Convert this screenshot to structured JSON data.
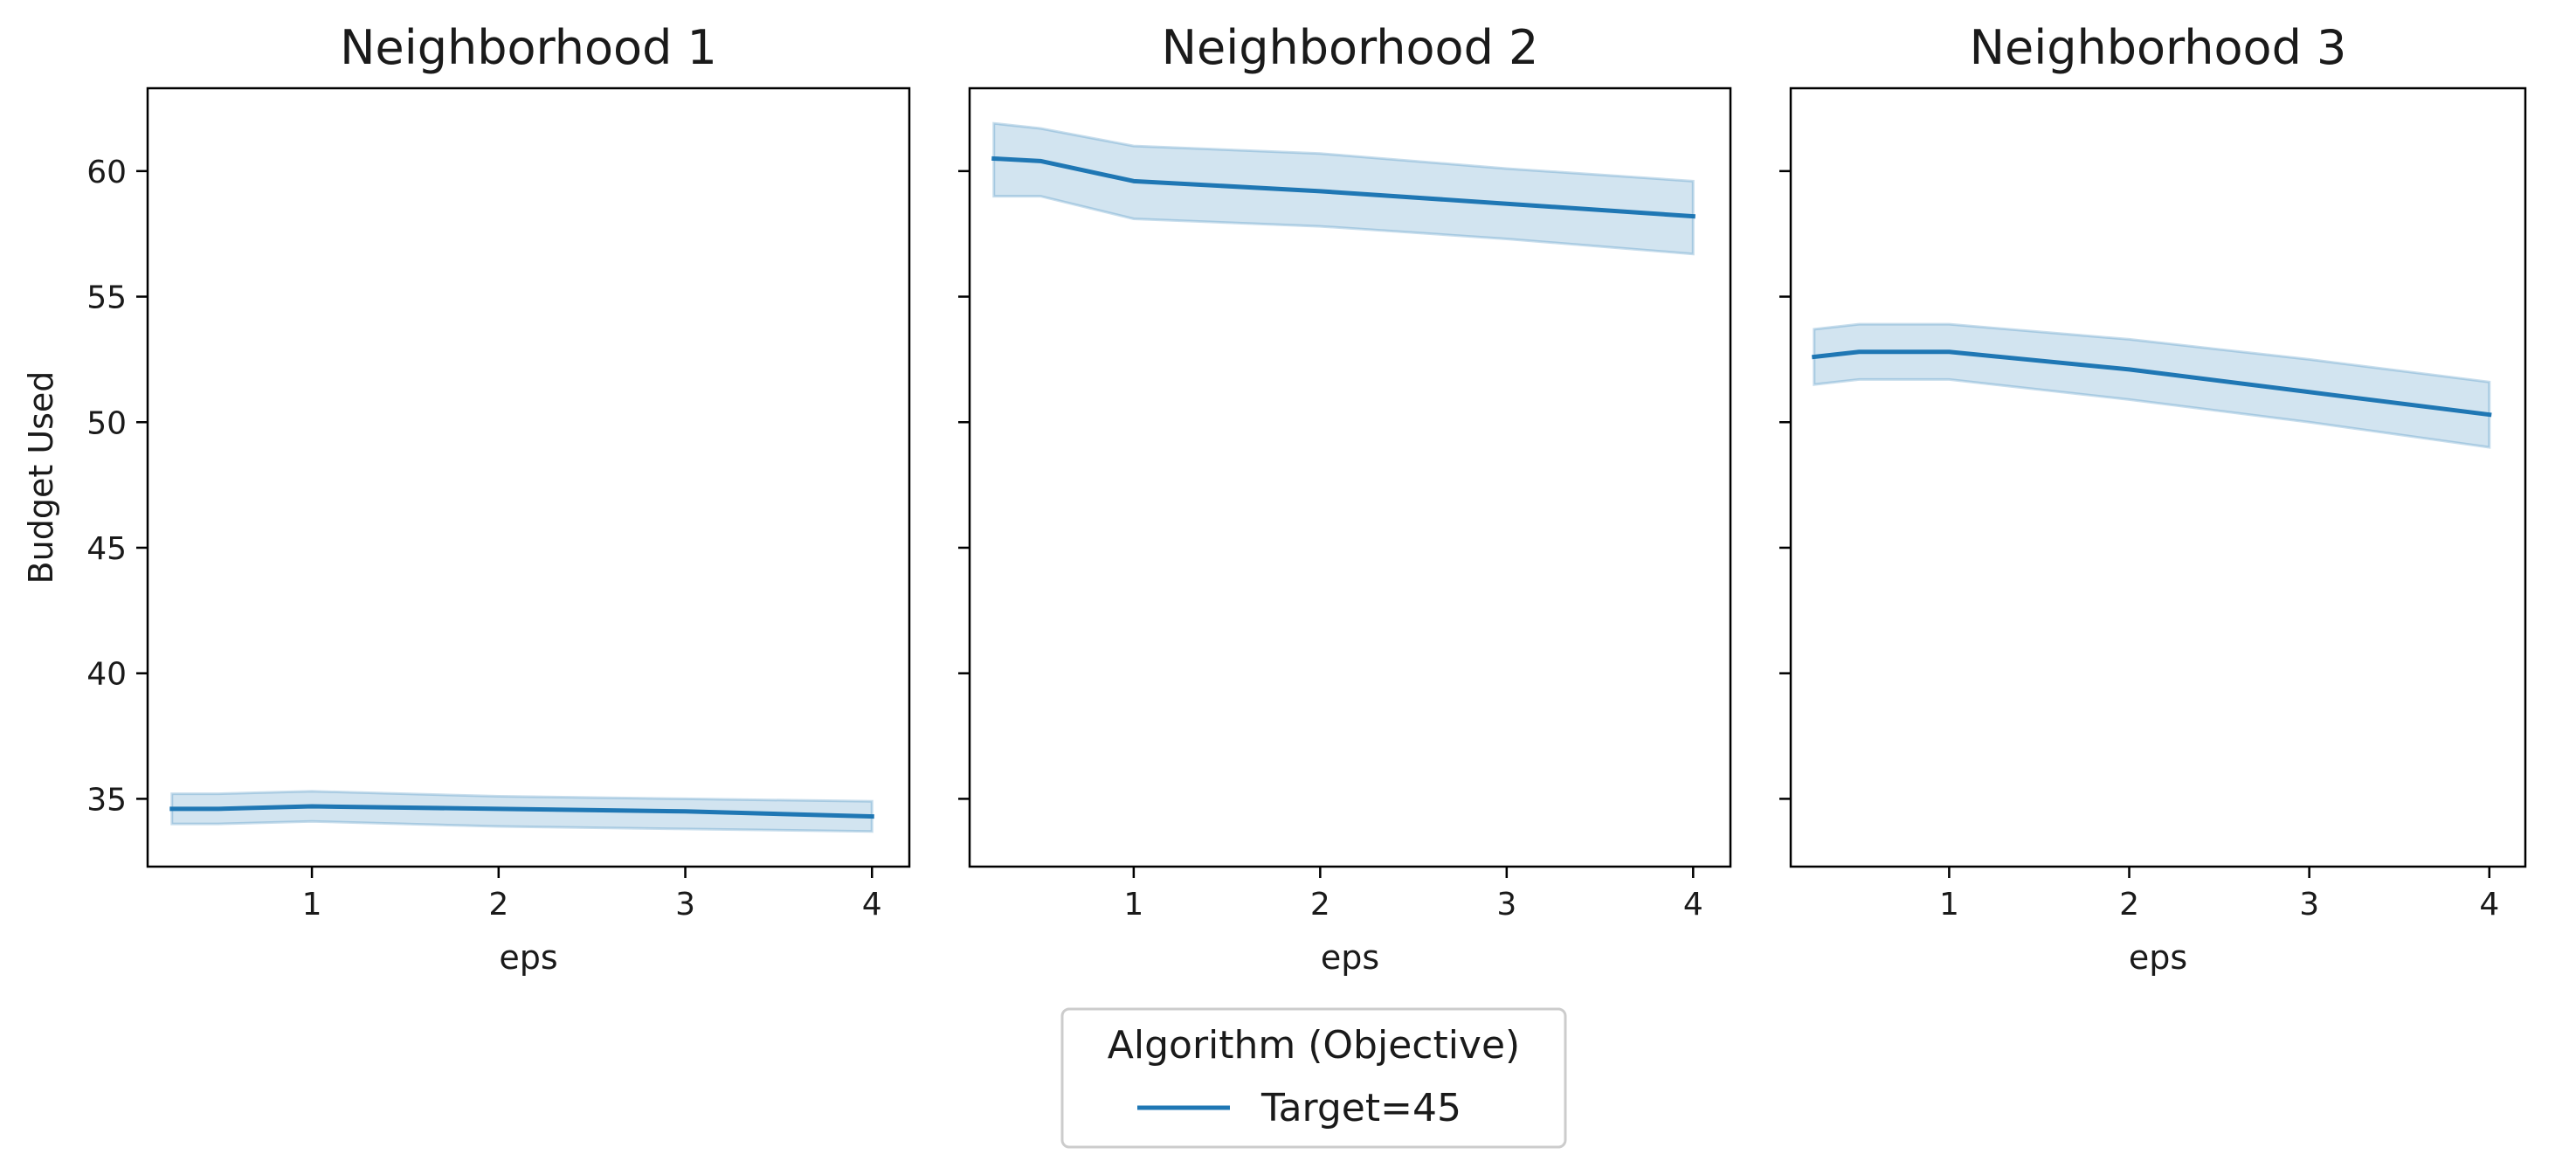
{
  "chart_data": [
    {
      "type": "line",
      "title": "Neighborhood 1",
      "xlabel": "eps",
      "ylabel": "Budget Used",
      "xlim": [
        0.12,
        4.2
      ],
      "ylim": [
        32.3,
        63.3
      ],
      "xticks": [
        1,
        2,
        3,
        4
      ],
      "yticks": [
        35,
        40,
        45,
        50,
        55,
        60
      ],
      "series": [
        {
          "name": "Target=45",
          "x": [
            0.25,
            0.5,
            1,
            2,
            3,
            4
          ],
          "y": [
            34.6,
            34.6,
            34.7,
            34.6,
            34.5,
            34.3
          ],
          "ci_low": [
            34.0,
            34.0,
            34.1,
            33.9,
            33.8,
            33.7
          ],
          "ci_high": [
            35.2,
            35.2,
            35.3,
            35.1,
            35.0,
            34.9
          ]
        }
      ]
    },
    {
      "type": "line",
      "title": "Neighborhood 2",
      "xlabel": "eps",
      "ylabel": "",
      "xlim": [
        0.12,
        4.2
      ],
      "ylim": [
        32.3,
        63.3
      ],
      "xticks": [
        1,
        2,
        3,
        4
      ],
      "yticks": [
        35,
        40,
        45,
        50,
        55,
        60
      ],
      "series": [
        {
          "name": "Target=45",
          "x": [
            0.25,
            0.5,
            1,
            2,
            3,
            4
          ],
          "y": [
            60.5,
            60.4,
            59.6,
            59.2,
            58.7,
            58.2
          ],
          "ci_low": [
            59.0,
            59.0,
            58.1,
            57.8,
            57.3,
            56.7
          ],
          "ci_high": [
            61.9,
            61.7,
            61.0,
            60.7,
            60.1,
            59.6
          ]
        }
      ]
    },
    {
      "type": "line",
      "title": "Neighborhood 3",
      "xlabel": "eps",
      "ylabel": "",
      "xlim": [
        0.12,
        4.2
      ],
      "ylim": [
        32.3,
        63.3
      ],
      "xticks": [
        1,
        2,
        3,
        4
      ],
      "yticks": [
        35,
        40,
        45,
        50,
        55,
        60
      ],
      "series": [
        {
          "name": "Target=45",
          "x": [
            0.25,
            0.5,
            1,
            2,
            3,
            4
          ],
          "y": [
            52.6,
            52.8,
            52.8,
            52.1,
            51.2,
            50.3
          ],
          "ci_low": [
            51.5,
            51.7,
            51.7,
            50.9,
            50.0,
            49.0
          ],
          "ci_high": [
            53.7,
            53.9,
            53.9,
            53.3,
            52.5,
            51.6
          ]
        }
      ]
    }
  ],
  "legend": {
    "title": "Algorithm (Objective)",
    "items": [
      {
        "label": "Target=45",
        "color": "#1f77b4"
      }
    ],
    "placement": "bottom-center"
  },
  "colors": {
    "line": "#1f77b4",
    "band": "#1f77b4"
  }
}
